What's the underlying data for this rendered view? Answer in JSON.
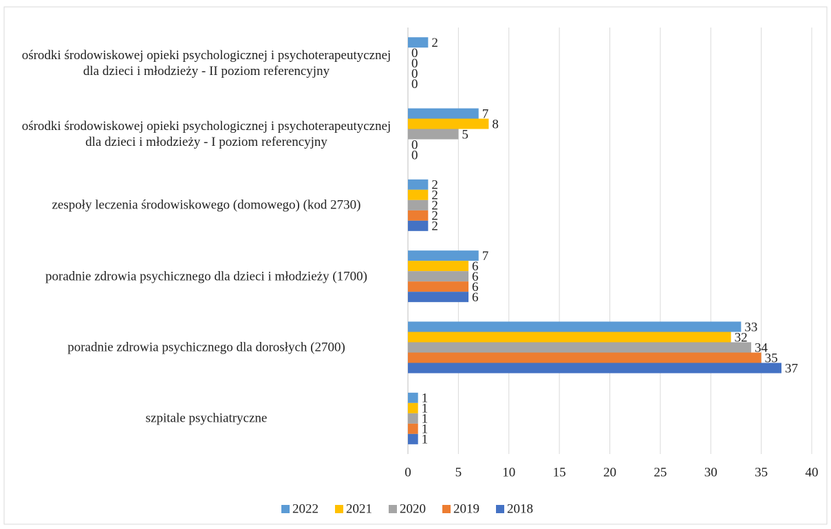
{
  "chart_data": {
    "type": "hbar",
    "categories": [
      "ośrodki środowiskowej opieki psychologicznej i psychoterapeutycznej dla dzieci i młodzieży - II poziom referencyjny",
      "ośrodki środowiskowej opieki psychologicznej i psychoterapeutycznej dla dzieci i młodzieży - I poziom referencyjny",
      "zespoły leczenia środowiskowego (domowego) (kod 2730)",
      "poradnie zdrowia psychicznego dla dzieci i młodzieży (1700)",
      "poradnie zdrowia psychicznego dla dorosłych (2700)",
      "szpitale psychiatryczne"
    ],
    "series": [
      {
        "name": "2022",
        "color": "#5b9bd5",
        "values": [
          2,
          7,
          2,
          7,
          33,
          1
        ]
      },
      {
        "name": "2021",
        "color": "#ffc000",
        "values": [
          0,
          8,
          2,
          6,
          32,
          1
        ]
      },
      {
        "name": "2020",
        "color": "#a5a5a5",
        "values": [
          0,
          5,
          2,
          6,
          34,
          1
        ]
      },
      {
        "name": "2019",
        "color": "#ed7d31",
        "values": [
          0,
          0,
          2,
          6,
          35,
          1
        ]
      },
      {
        "name": "2018",
        "color": "#4472c4",
        "values": [
          0,
          0,
          2,
          6,
          37,
          1
        ]
      }
    ],
    "xlim": [
      0,
      40
    ],
    "xticks": [
      0,
      5,
      10,
      15,
      20,
      25,
      30,
      35,
      40
    ],
    "grid": true,
    "legend": "bottom"
  }
}
